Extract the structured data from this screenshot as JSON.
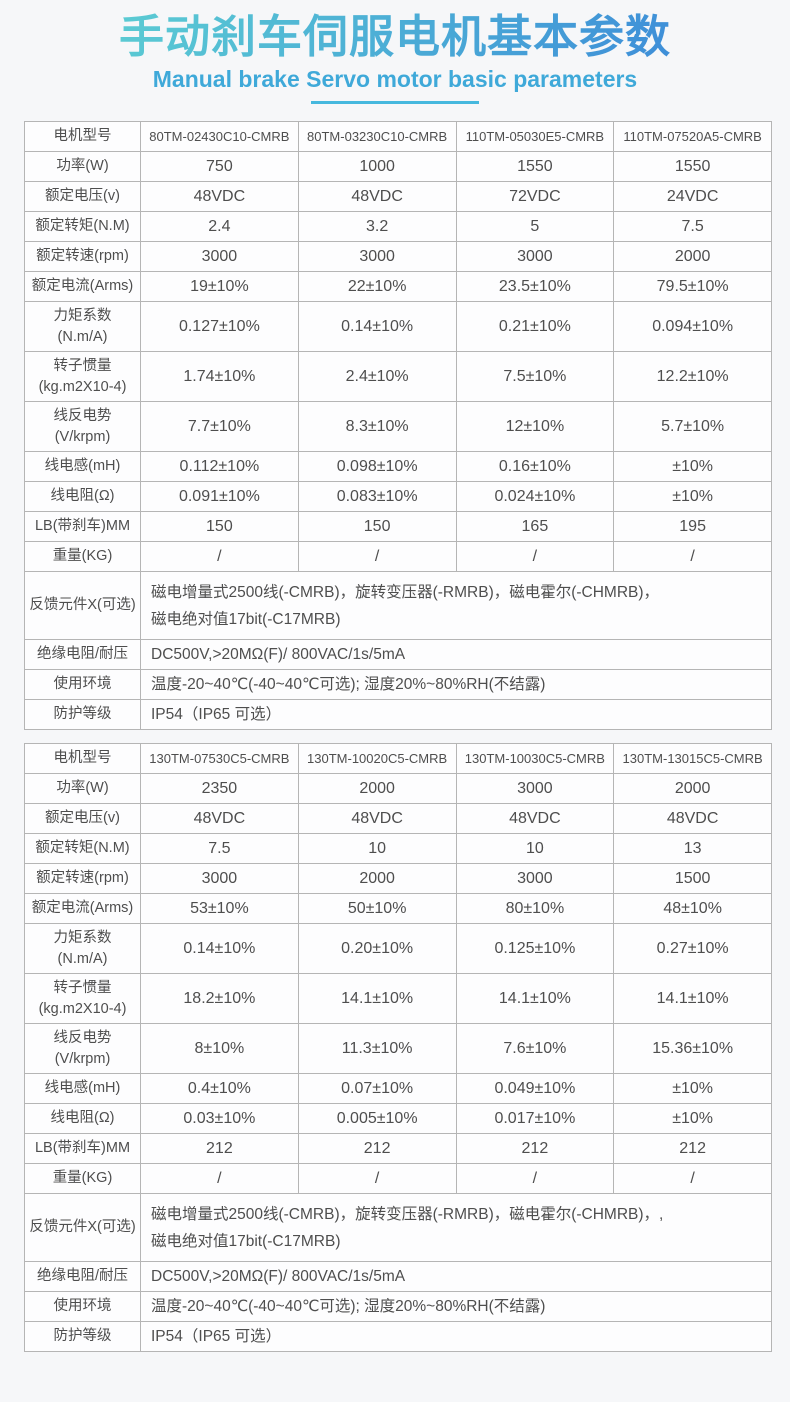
{
  "header": {
    "title": "手动刹车伺服电机基本参数",
    "subtitle": "Manual brake Servo motor basic parameters"
  },
  "colors": {
    "title_gradient_start": "#5bcbd3",
    "title_gradient_end": "#3e8ed8",
    "subtitle_text": "#3fa9d9",
    "underline": "#46b8de",
    "table_border": "#b5b5b5",
    "cell_text": "#4e4e4e",
    "page_background": "#f6f7f9"
  },
  "tables": [
    {
      "rows": [
        {
          "label": "电机型号",
          "values": [
            "80TM-02430C10-CMRB",
            "80TM-03230C10-CMRB",
            "110TM-05030E5-CMRB",
            "110TM-07520A5-CMRB"
          ]
        },
        {
          "label": "功率(W)",
          "values": [
            "750",
            "1000",
            "1550",
            "1550"
          ]
        },
        {
          "label": "额定电压(v)",
          "values": [
            "48VDC",
            "48VDC",
            "72VDC",
            "24VDC"
          ]
        },
        {
          "label": "额定转矩(N.M)",
          "values": [
            "2.4",
            "3.2",
            "5",
            "7.5"
          ]
        },
        {
          "label": "额定转速(rpm)",
          "values": [
            "3000",
            "3000",
            "3000",
            "2000"
          ]
        },
        {
          "label": "额定电流(Arms)",
          "values": [
            "19±10%",
            "22±10%",
            "23.5±10%",
            "79.5±10%"
          ]
        },
        {
          "label": "力矩系数\n(N.m/A)",
          "values": [
            "0.127±10%",
            "0.14±10%",
            "0.21±10%",
            "0.094±10%"
          ]
        },
        {
          "label": "转子惯量\n(kg.m2X10-4)",
          "values": [
            "1.74±10%",
            "2.4±10%",
            "7.5±10%",
            "12.2±10%"
          ]
        },
        {
          "label": "线反电势\n(V/krpm)",
          "values": [
            "7.7±10%",
            "8.3±10%",
            "12±10%",
            "5.7±10%"
          ]
        },
        {
          "label": "线电感(mH)",
          "values": [
            "0.112±10%",
            "0.098±10%",
            "0.16±10%",
            "±10%"
          ]
        },
        {
          "label": "线电阻(Ω)",
          "values": [
            "0.091±10%",
            "0.083±10%",
            "0.024±10%",
            "±10%"
          ]
        },
        {
          "label": "LB(带刹车)MM",
          "values": [
            "150",
            "150",
            "165",
            "195"
          ]
        },
        {
          "label": "重量(KG)",
          "values": [
            "/",
            "/",
            "/",
            "/"
          ]
        },
        {
          "label": "反馈元件X(可选)",
          "merged": "磁电增量式2500线(-CMRB)，旋转变压器(-RMRB)，磁电霍尔(-CHMRB)，\n磁电绝对值17bit(-C17MRB)"
        },
        {
          "label": "绝缘电阻/耐压",
          "merged": "DC500V,>20MΩ(F)/ 800VAC/1s/5mA"
        },
        {
          "label": "使用环境",
          "merged": "温度-20~40℃(-40~40℃可选); 湿度20%~80%RH(不结露)"
        },
        {
          "label": "防护等级",
          "merged": "IP54（IP65 可选）"
        }
      ]
    },
    {
      "rows": [
        {
          "label": "电机型号",
          "values": [
            "130TM-07530C5-CMRB",
            "130TM-10020C5-CMRB",
            "130TM-10030C5-CMRB",
            "130TM-13015C5-CMRB"
          ]
        },
        {
          "label": "功率(W)",
          "values": [
            "2350",
            "2000",
            "3000",
            "2000"
          ]
        },
        {
          "label": "额定电压(v)",
          "values": [
            "48VDC",
            "48VDC",
            "48VDC",
            "48VDC"
          ]
        },
        {
          "label": "额定转矩(N.M)",
          "values": [
            "7.5",
            "10",
            "10",
            "13"
          ]
        },
        {
          "label": "额定转速(rpm)",
          "values": [
            "3000",
            "2000",
            "3000",
            "1500"
          ]
        },
        {
          "label": "额定电流(Arms)",
          "values": [
            "53±10%",
            "50±10%",
            "80±10%",
            "48±10%"
          ]
        },
        {
          "label": "力矩系数\n(N.m/A)",
          "values": [
            "0.14±10%",
            "0.20±10%",
            "0.125±10%",
            "0.27±10%"
          ]
        },
        {
          "label": "转子惯量\n(kg.m2X10-4)",
          "values": [
            "18.2±10%",
            "14.1±10%",
            "14.1±10%",
            "14.1±10%"
          ]
        },
        {
          "label": "线反电势\n(V/krpm)",
          "values": [
            "8±10%",
            "11.3±10%",
            "7.6±10%",
            "15.36±10%"
          ]
        },
        {
          "label": "线电感(mH)",
          "values": [
            "0.4±10%",
            "0.07±10%",
            "0.049±10%",
            "±10%"
          ]
        },
        {
          "label": "线电阻(Ω)",
          "values": [
            "0.03±10%",
            "0.005±10%",
            "0.017±10%",
            "±10%"
          ]
        },
        {
          "label": "LB(带刹车)MM",
          "values": [
            "212",
            "212",
            "212",
            "212"
          ]
        },
        {
          "label": "重量(KG)",
          "values": [
            "/",
            "/",
            "/",
            "/"
          ]
        },
        {
          "label": "反馈元件X(可选)",
          "merged": "磁电增量式2500线(-CMRB)，旋转变压器(-RMRB)，磁电霍尔(-CHMRB)，,\n磁电绝对值17bit(-C17MRB)"
        },
        {
          "label": "绝缘电阻/耐压",
          "merged": "DC500V,>20MΩ(F)/ 800VAC/1s/5mA"
        },
        {
          "label": "使用环境",
          "merged": "温度-20~40℃(-40~40℃可选); 湿度20%~80%RH(不结露)"
        },
        {
          "label": "防护等级",
          "merged": "IP54（IP65 可选）"
        }
      ]
    }
  ]
}
